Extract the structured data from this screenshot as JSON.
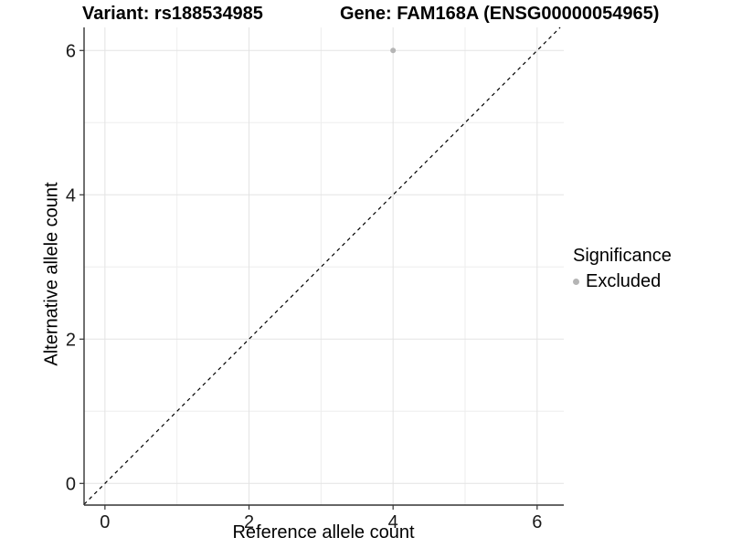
{
  "header": {
    "variant_title": "Variant: rs188534985",
    "gene_title": "Gene: FAM168A (ENSG00000054965)"
  },
  "axes": {
    "x_label": "Reference allele count",
    "y_label": "Alternative allele count"
  },
  "legend": {
    "title": "Significance",
    "items": [
      {
        "label": "Excluded",
        "color": "#b5b5b5"
      }
    ]
  },
  "colors": {
    "background": "#ffffff",
    "grid_major": "#e3e3e3",
    "grid_minor": "#eeeeee",
    "axis_line": "#333333",
    "tick_text": "#1a1a1a",
    "diagonal": "#000000",
    "point": "#b5b5b5"
  },
  "chart_data": {
    "type": "scatter",
    "title": "Variant: rs188534985",
    "subtitle": "Gene: FAM168A (ENSG00000054965)",
    "xlabel": "Reference allele count",
    "ylabel": "Alternative allele count",
    "xlim": [
      -0.29,
      6.37
    ],
    "ylim": [
      -0.3,
      6.32
    ],
    "xticks": [
      0,
      2,
      4,
      6
    ],
    "yticks": [
      0,
      2,
      4,
      6
    ],
    "minor_xticks": [
      1,
      3,
      5
    ],
    "minor_yticks": [
      1,
      3,
      5
    ],
    "grid": true,
    "legend_position": "right",
    "legend_title": "Significance",
    "series": [
      {
        "name": "Excluded",
        "color": "#b5b5b5",
        "marker": "circle",
        "point_radius": 3,
        "points": [
          {
            "x": 4,
            "y": 6
          }
        ]
      }
    ],
    "reference_line": {
      "description": "identity line y = x",
      "style": "dashed",
      "color": "#000000",
      "from": [
        -0.29,
        -0.29
      ],
      "to": [
        6.32,
        6.32
      ]
    }
  }
}
